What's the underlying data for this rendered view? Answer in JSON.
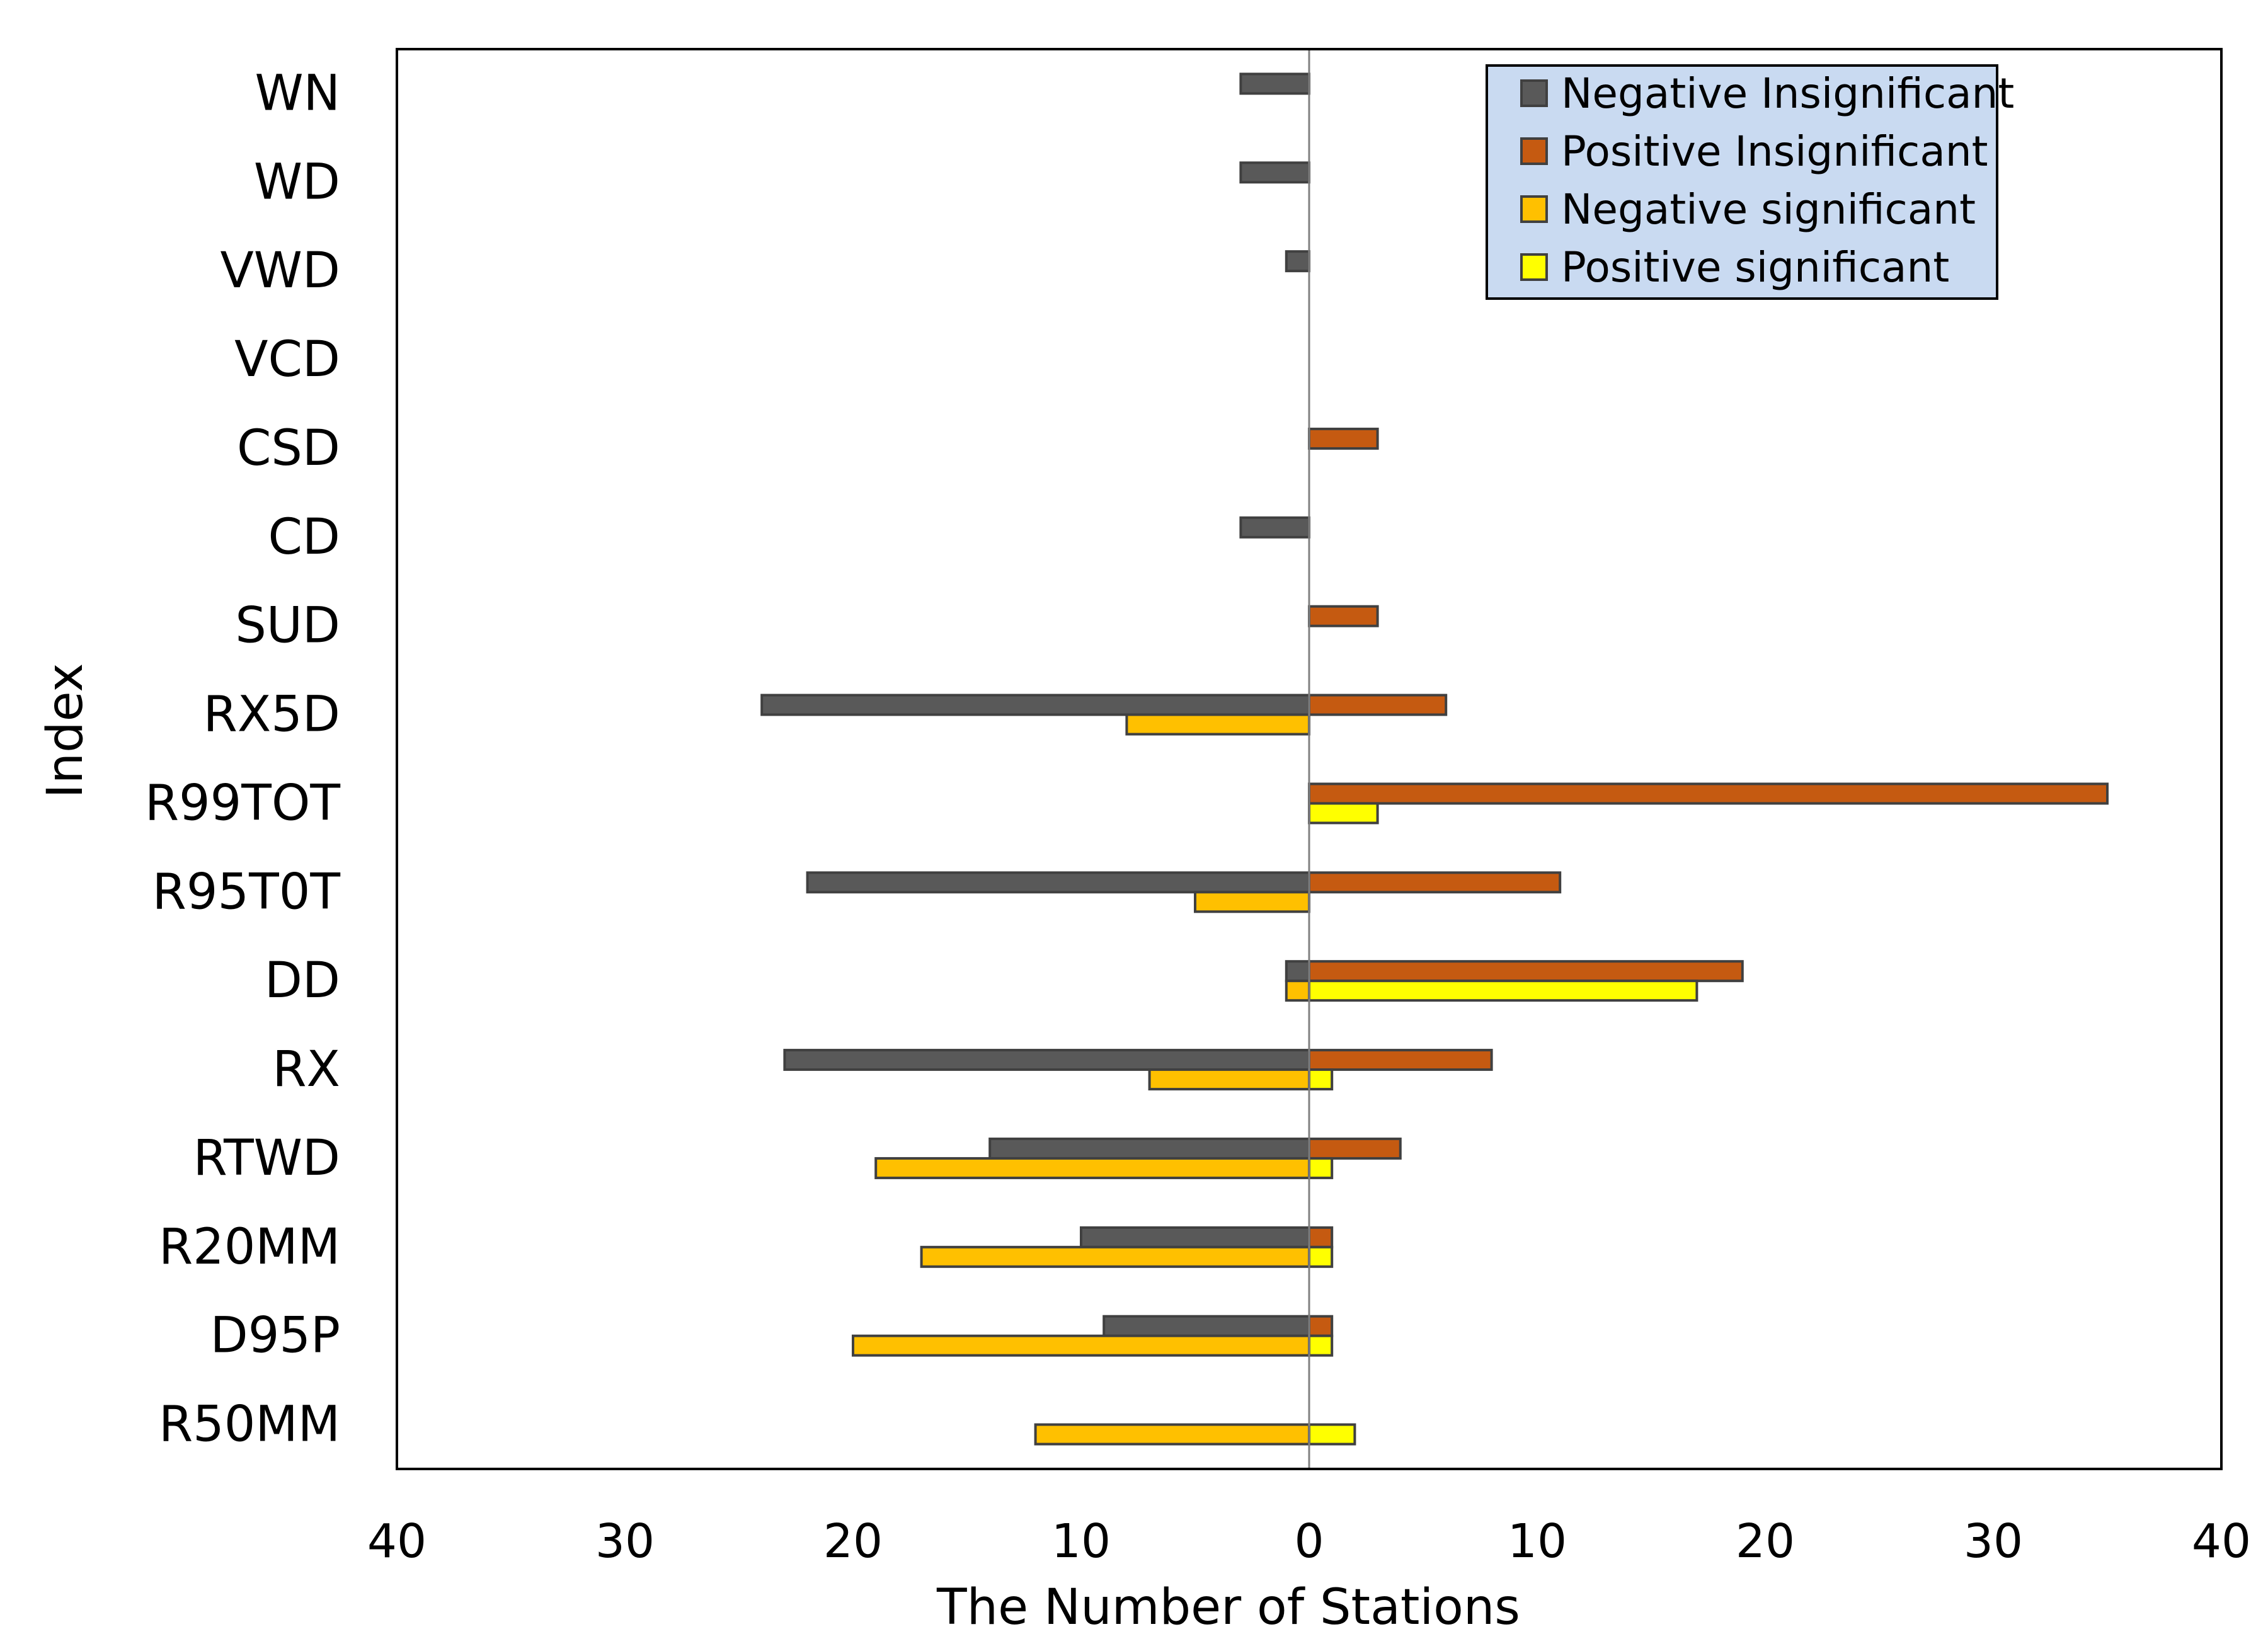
{
  "chart_data": {
    "type": "bar",
    "orientation": "horizontal",
    "xlabel": "The Number of Stations",
    "ylabel": "Index",
    "xlim": [
      -40,
      40
    ],
    "x_ticks": [
      -40,
      -30,
      -20,
      -10,
      0,
      10,
      20,
      30,
      40
    ],
    "x_tick_labels": [
      "40",
      "30",
      "20",
      "10",
      "0",
      "10",
      "20",
      "30",
      "40"
    ],
    "grid": false,
    "legend_position": "top-right",
    "categories": [
      "WN",
      "WD",
      "VWD",
      "VCD",
      "CSD",
      "CD",
      "SUD",
      "RX5D",
      "R99TOT",
      "R95T0T",
      "DD",
      "RX",
      "RTWD",
      "R20MM",
      "D95P",
      "R50MM"
    ],
    "series": [
      {
        "name": "Negative Insignificant",
        "color": "#595959",
        "values": [
          -3,
          -3,
          -1,
          0,
          0,
          -3,
          0,
          -24,
          0,
          -22,
          -1,
          -23,
          -14,
          -10,
          -9,
          0
        ]
      },
      {
        "name": "Positive Insignificant",
        "color": "#C55A11",
        "values": [
          0,
          0,
          0,
          0,
          3,
          0,
          3,
          6,
          35,
          11,
          19,
          8,
          4,
          1,
          1,
          0
        ]
      },
      {
        "name": "Negative significant",
        "color": "#FFC000",
        "values": [
          0,
          0,
          0,
          0,
          0,
          0,
          0,
          -8,
          0,
          -5,
          -1,
          -7,
          -19,
          -17,
          -20,
          -12
        ]
      },
      {
        "name": "Positive significant",
        "color": "#FFFF00",
        "values": [
          0,
          0,
          0,
          0,
          0,
          0,
          0,
          0,
          3,
          0,
          17,
          1,
          1,
          1,
          1,
          2
        ]
      }
    ],
    "colors": {
      "legend_background": "#C9DAF1",
      "bar_stroke": "#404040",
      "zero_line": "#808080",
      "frame": "#000000"
    }
  }
}
